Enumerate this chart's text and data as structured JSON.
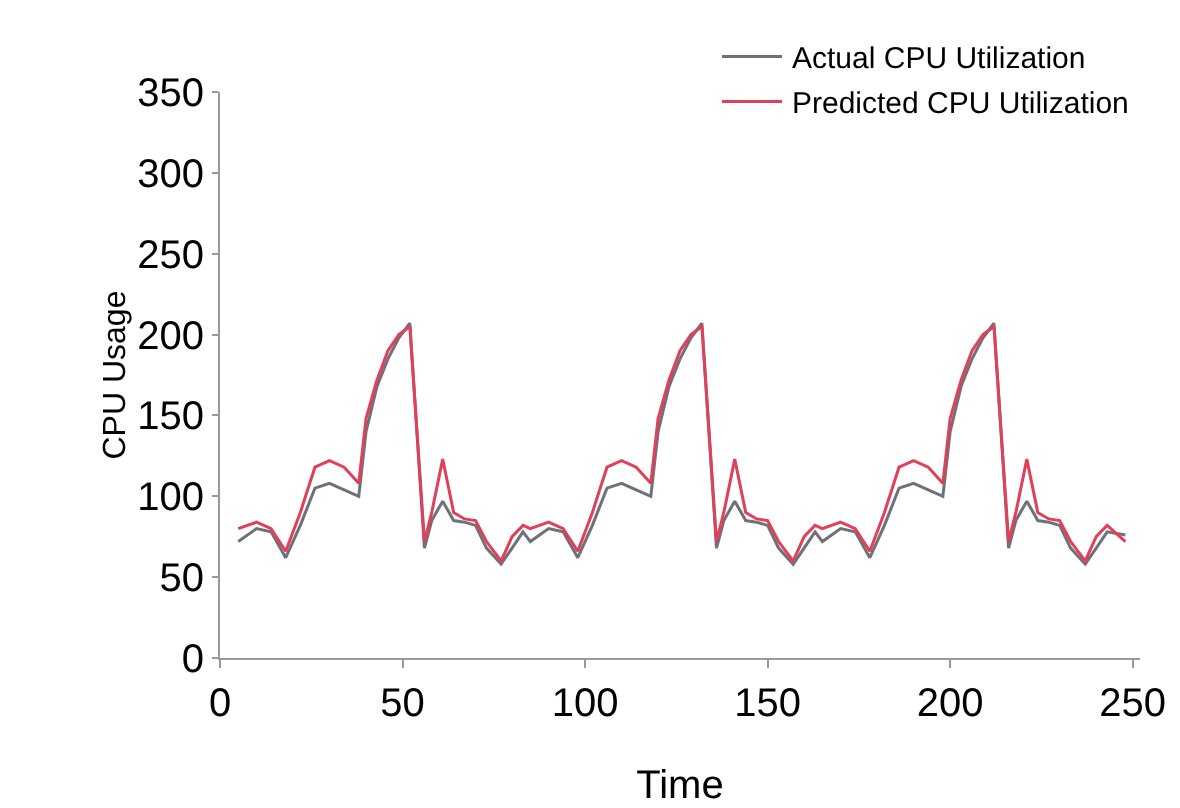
{
  "chart_data": {
    "type": "line",
    "xlabel": "Time",
    "ylabel": "CPU Usage",
    "x": [
      5,
      10,
      14,
      18,
      22,
      26,
      30,
      34,
      38,
      40,
      43,
      46,
      49,
      52,
      56,
      58,
      61,
      64,
      67,
      70,
      73,
      77,
      80,
      83,
      85,
      90,
      94,
      98,
      102,
      106,
      110,
      114,
      118,
      120,
      123,
      126,
      129,
      132,
      136,
      138,
      141,
      144,
      147,
      150,
      153,
      157,
      160,
      163,
      165,
      170,
      174,
      178,
      182,
      186,
      190,
      194,
      198,
      200,
      203,
      206,
      209,
      212,
      216,
      218,
      221,
      224,
      227,
      230,
      233,
      237,
      240,
      243,
      248
    ],
    "series": [
      {
        "name": "Actual CPU Utilization",
        "color": "#707078",
        "values": [
          72,
          80,
          78,
          62,
          82,
          105,
          108,
          104,
          100,
          140,
          168,
          185,
          198,
          207,
          68,
          85,
          97,
          85,
          84,
          82,
          68,
          58,
          68,
          78,
          72,
          80,
          78,
          62,
          82,
          105,
          108,
          104,
          100,
          140,
          168,
          185,
          198,
          207,
          68,
          85,
          97,
          85,
          84,
          82,
          68,
          58,
          68,
          78,
          72,
          80,
          78,
          62,
          82,
          105,
          108,
          104,
          100,
          140,
          168,
          185,
          198,
          207,
          68,
          85,
          97,
          85,
          84,
          82,
          68,
          58,
          68,
          78,
          76
        ]
      },
      {
        "name": "Predicted CPU Utilization",
        "color": "#e0405a",
        "values": [
          80,
          84,
          80,
          66,
          90,
          118,
          122,
          118,
          108,
          148,
          172,
          190,
          200,
          205,
          72,
          90,
          123,
          90,
          86,
          85,
          72,
          60,
          75,
          82,
          80,
          84,
          80,
          66,
          90,
          118,
          122,
          118,
          108,
          148,
          172,
          190,
          200,
          205,
          72,
          90,
          123,
          90,
          86,
          85,
          72,
          60,
          75,
          82,
          80,
          84,
          80,
          66,
          90,
          118,
          122,
          118,
          108,
          148,
          172,
          190,
          200,
          205,
          72,
          90,
          123,
          90,
          86,
          85,
          72,
          60,
          75,
          82,
          72
        ]
      }
    ],
    "xlim": [
      0,
      252
    ],
    "xticks": [
      0,
      50,
      100,
      150,
      200,
      250
    ],
    "ylim": [
      0,
      350
    ],
    "yticks": [
      0,
      50,
      100,
      150,
      200,
      250,
      300,
      350
    ],
    "grid": false,
    "legend": "top right"
  }
}
